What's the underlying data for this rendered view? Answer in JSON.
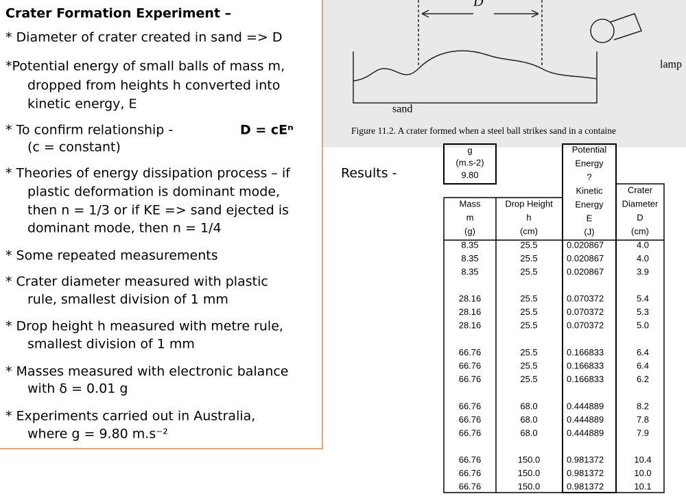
{
  "title": "Crater Formation Experiment –",
  "bullets": [
    {
      "lines": [
        "* Diameter of crater created in sand => D"
      ]
    },
    {
      "lines": [
        "*Potential energy of small balls of mass m,",
        "dropped from heights h converted into",
        "kinetic energy, E"
      ]
    },
    {
      "lines": [
        "* To confirm relationship -",
        "(c = constant)"
      ],
      "formula": "D = cEⁿ"
    },
    {
      "lines": [
        "* Theories of energy dissipation process – if",
        "plastic deformation is dominant mode,",
        "then n = 1/3 or if KE => sand ejected is",
        "dominant mode, then n = 1/4"
      ]
    },
    {
      "lines": [
        "* Some repeated measurements"
      ]
    },
    {
      "lines": [
        "* Crater diameter measured with plastic",
        "rule, smallest division of 1 mm"
      ]
    },
    {
      "lines": [
        "* Drop height h measured with metre rule,",
        "smallest division of 1 mm"
      ]
    },
    {
      "lines": [
        "* Masses measured with electronic balance",
        "with δ = 0.01 g"
      ]
    },
    {
      "lines": [
        "* Experiments carried out in Australia,",
        "where g = 9.80 m.s⁻²"
      ]
    }
  ],
  "figure": {
    "d_label": "D",
    "sand": "sand",
    "lamp": "lamp",
    "caption": "Figure 11.2.  A crater formed when a steel ball strikes sand in a containe"
  },
  "results_label": "Results -",
  "g_box": [
    "g",
    "(m.s-2)",
    "9.80"
  ],
  "table": {
    "headers": [
      [
        "Mass",
        "m",
        "(g)"
      ],
      [
        "Drop Height",
        "h",
        "(cm)"
      ],
      [
        "Potential",
        "Energy",
        "?",
        "Kinetic",
        "Energy",
        "E",
        "(J)"
      ],
      [
        "Crater",
        "Diameter",
        "D",
        "(cm)"
      ]
    ],
    "groups": [
      [
        [
          "8.35",
          "25.5",
          "0.020867",
          "4.0"
        ],
        [
          "8.35",
          "25.5",
          "0.020867",
          "4.0"
        ],
        [
          "8.35",
          "25.5",
          "0.020867",
          "3.9"
        ]
      ],
      [
        [
          "28.16",
          "25.5",
          "0.070372",
          "5.4"
        ],
        [
          "28.16",
          "25.5",
          "0.070372",
          "5.3"
        ],
        [
          "28.16",
          "25.5",
          "0.070372",
          "5.0"
        ]
      ],
      [
        [
          "66.76",
          "25.5",
          "0.166833",
          "6.4"
        ],
        [
          "66.76",
          "25.5",
          "0.166833",
          "6.4"
        ],
        [
          "66.76",
          "25.5",
          "0.166833",
          "6.2"
        ]
      ],
      [
        [
          "66.76",
          "68.0",
          "0.444889",
          "8.2"
        ],
        [
          "66.76",
          "68.0",
          "0.444889",
          "7.8"
        ],
        [
          "66.76",
          "68.0",
          "0.444889",
          "7.9"
        ]
      ],
      [
        [
          "66.76",
          "150.0",
          "0.981372",
          "10.4"
        ],
        [
          "66.76",
          "150.0",
          "0.981372",
          "10.0"
        ],
        [
          "66.76",
          "150.0",
          "0.981372",
          "10.1"
        ]
      ]
    ]
  }
}
